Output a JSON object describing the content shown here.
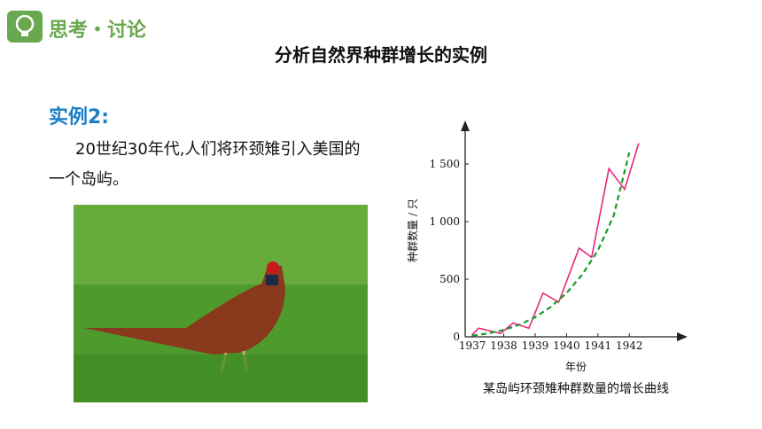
{
  "header": {
    "title": "思考・讨论"
  },
  "title": "分析自然界种群增长的实例",
  "example": {
    "heading": "实例2:",
    "text": "20世纪30年代,人们将环颈雉引入美国的一个岛屿。"
  },
  "chart_data": {
    "type": "line",
    "caption": "某岛屿环颈雉种群数量的增长曲线",
    "x_label": "年份",
    "y_label": "种群数量 / 只",
    "xlim": [
      1936.77,
      1943.8
    ],
    "ylim": [
      0,
      1850
    ],
    "xticks": [
      1937,
      1938,
      1939,
      1940,
      1941,
      1942
    ],
    "yticks": [
      0,
      500,
      {
        "value": 1000,
        "label": "1 000"
      },
      {
        "value": 1500,
        "label": "1 500"
      }
    ],
    "series": [
      {
        "color": "#e8287a",
        "dash": false,
        "x": [
          1937,
          1937.2,
          1937.9,
          1938.3,
          1938.8,
          1939.25,
          1939.75,
          1940.4,
          1940.8,
          1941.35,
          1941.85,
          1942.3
        ],
        "values": [
          20,
          75,
          30,
          120,
          75,
          380,
          300,
          770,
          690,
          1460,
          1280,
          1680
        ]
      },
      {
        "color": "#1a9a2a",
        "dash": true,
        "x": [
          1937,
          1937.5,
          1938,
          1938.5,
          1939,
          1939.5,
          1940,
          1940.5,
          1941,
          1941.5,
          1942
        ],
        "values": [
          10,
          30,
          60,
          105,
          170,
          260,
          380,
          540,
          750,
          1050,
          1600
        ]
      }
    ]
  }
}
